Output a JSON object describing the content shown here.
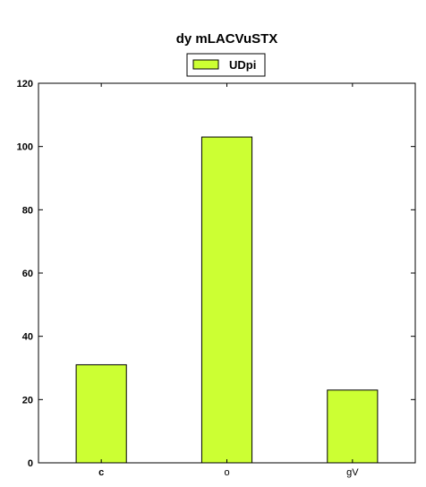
{
  "chart_data": {
    "type": "bar",
    "title": "dy mLACVuSTX",
    "categories": [
      "c",
      "o",
      "gV"
    ],
    "series": [
      {
        "name": "UDpi",
        "values": [
          31,
          103,
          23
        ],
        "color": "#ccff33"
      }
    ],
    "ylim": [
      0,
      120
    ],
    "yticks": [
      0,
      20,
      40,
      60,
      80,
      100,
      120
    ],
    "xlabel": "",
    "ylabel": "",
    "grid": false,
    "legend": "top-center"
  }
}
